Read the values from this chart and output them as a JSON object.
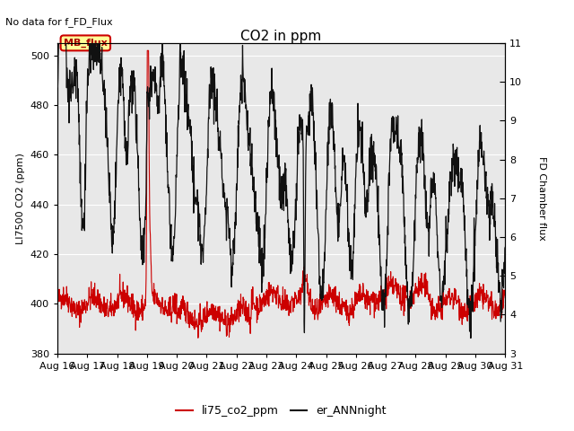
{
  "title": "CO2 in ppm",
  "ylabel_left": "LI7500 CO2 (ppm)",
  "ylabel_right": "FD Chamber flux",
  "top_label": "No data for f_FD_Flux",
  "box_label": "MB_flux",
  "ylim_left": [
    380,
    505
  ],
  "ylim_right": [
    3.0,
    11.0
  ],
  "yticks_left": [
    380,
    400,
    420,
    440,
    460,
    480,
    500
  ],
  "yticks_right": [
    3.0,
    4.0,
    5.0,
    6.0,
    7.0,
    8.0,
    9.0,
    10.0,
    11.0
  ],
  "xtick_labels": [
    "Aug 16",
    "Aug 17",
    "Aug 18",
    "Aug 19",
    "Aug 20",
    "Aug 21",
    "Aug 22",
    "Aug 23",
    "Aug 24",
    "Aug 25",
    "Aug 26",
    "Aug 27",
    "Aug 28",
    "Aug 29",
    "Aug 30",
    "Aug 31"
  ],
  "legend_labels": [
    "li75_co2_ppm",
    "er_ANNnight"
  ],
  "legend_colors": [
    "#cc0000",
    "#111111"
  ],
  "line_color_red": "#cc0000",
  "line_color_black": "#111111",
  "bg_outer": "#d8d8d8",
  "bg_inner": "#e8e8e8",
  "grid_color": "#ffffff",
  "fontsize_title": 11,
  "fontsize_labels": 8,
  "fontsize_ticks": 8,
  "fontsize_legend": 9
}
